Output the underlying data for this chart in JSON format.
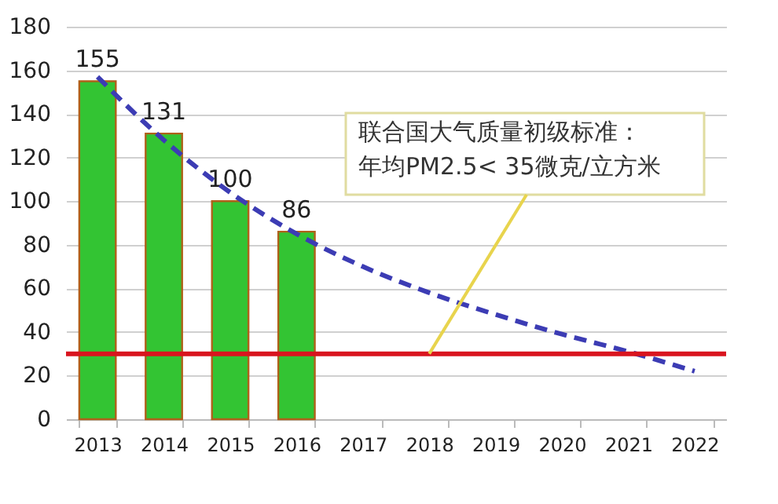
{
  "chart_data": {
    "type": "bar",
    "categories": [
      "2013",
      "2014",
      "2015",
      "2016",
      "2017",
      "2018",
      "2019",
      "2020",
      "2021",
      "2022"
    ],
    "series": [
      {
        "color": "#33c433",
        "values": [
          155,
          131,
          100,
          86,
          null,
          null,
          null,
          null,
          null,
          null
        ],
        "value_labels": [
          "155",
          "131",
          "100",
          "86",
          null,
          null,
          null,
          null,
          null,
          null
        ]
      },
      {
        "type": "line",
        "color": "#3c3cb4",
        "line_style": "dashed",
        "values": [
          157,
          128,
          104,
          85,
          70,
          58,
          48,
          39,
          31,
          22
        ]
      }
    ],
    "ylim": [
      0,
      180
    ],
    "yticks": [
      0,
      20,
      40,
      60,
      80,
      100,
      120,
      140,
      160,
      180
    ],
    "grid": "y",
    "ref_lines": [
      {
        "axis": "y",
        "value": 30,
        "color": "#d9141e"
      }
    ],
    "annotations": [
      {
        "text": "联合国大气质量初级标准：年均PM2.5< 35微克/立方米",
        "x": "2018",
        "y": 30
      }
    ]
  }
}
